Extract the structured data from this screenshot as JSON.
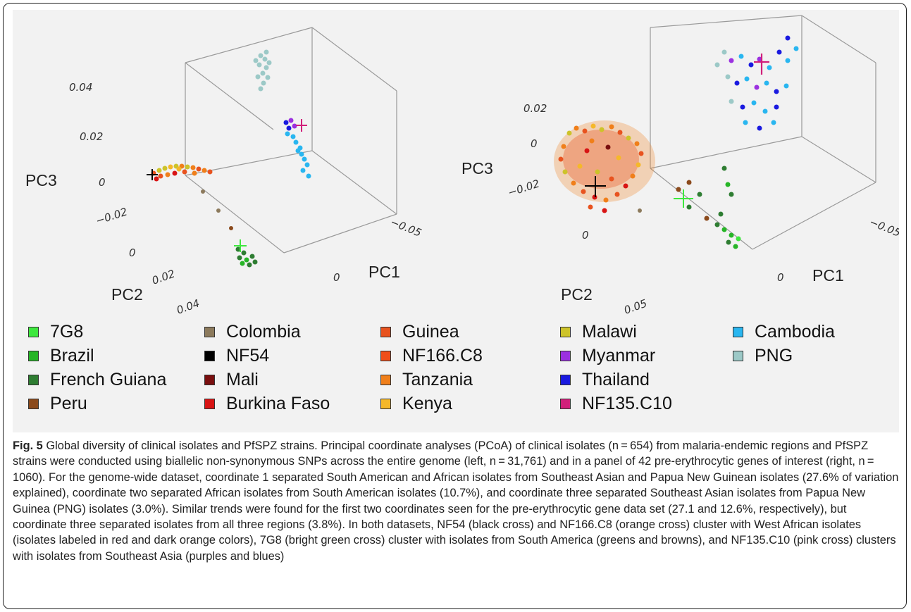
{
  "figure": {
    "left_plot": {
      "axis_titles": {
        "pc1": "PC1",
        "pc2": "PC2",
        "pc3": "PC3"
      },
      "pc3_ticks": [
        "0.04",
        "0.02",
        "0"
      ],
      "pc2_ticks": [
        "−0.02",
        "0",
        "0.02",
        "0.04"
      ],
      "pc1_ticks": [
        "−0.05",
        "0"
      ]
    },
    "right_plot": {
      "axis_titles": {
        "pc1": "PC1",
        "pc2": "PC2",
        "pc3": "PC3"
      },
      "pc3_ticks": [
        "0.02",
        "0",
        "−0.02"
      ],
      "pc2_ticks": [
        "0",
        "0.05"
      ],
      "pc1_ticks": [
        "−0.05",
        "0"
      ]
    },
    "legend": [
      {
        "label": "7G8",
        "color": "#3ee83e"
      },
      {
        "label": "Brazil",
        "color": "#26b526"
      },
      {
        "label": "French Guiana",
        "color": "#2e7d32"
      },
      {
        "label": "Peru",
        "color": "#8b4a1c"
      },
      {
        "label": "Colombia",
        "color": "#8c7a5c"
      },
      {
        "label": "NF54",
        "color": "#000000"
      },
      {
        "label": "Mali",
        "color": "#7a0f0f"
      },
      {
        "label": "Burkina Faso",
        "color": "#d81414"
      },
      {
        "label": "Guinea",
        "color": "#e8531f"
      },
      {
        "label": "NF166.C8",
        "color": "#f04e1a"
      },
      {
        "label": "Tanzania",
        "color": "#f07f1a"
      },
      {
        "label": "Kenya",
        "color": "#f5b82a"
      },
      {
        "label": "Malawi",
        "color": "#cdc32a"
      },
      {
        "label": "Myanmar",
        "color": "#9b30e0"
      },
      {
        "label": "Thailand",
        "color": "#1a1ae0"
      },
      {
        "label": "NF135.C10",
        "color": "#d11f7a"
      },
      {
        "label": "Cambodia",
        "color": "#29b6f0"
      },
      {
        "label": "PNG",
        "color": "#9cc9c7"
      }
    ],
    "caption": {
      "label": "Fig. 5",
      "text": " Global diversity of clinical isolates and PfSPZ strains. Principal coordinate analyses (PCoA) of clinical isolates (n = 654) from malaria-endemic regions and PfSPZ strains were conducted using biallelic non-synonymous SNPs across the entire genome (left, n = 31,761) and in a panel of 42 pre-erythrocytic genes of interest (right, n = 1060). For the genome-wide dataset, coordinate 1 separated South American and African isolates from Southeast Asian and Papua New Guinean isolates (27.6% of variation explained), coordinate two separated African isolates from South American isolates (10.7%), and coordinate three separated Southeast Asian isolates from Papua New Guinea (PNG) isolates (3.0%). Similar trends were found for the first two coordinates seen for the pre-erythrocytic gene data set (27.1 and 12.6%, respectively), but coordinate three separated isolates from all three regions (3.8%). In both datasets, NF54 (black cross) and NF166.C8 (orange cross) cluster with West African isolates (isolates labeled in red and dark orange colors), 7G8 (bright green cross) cluster with isolates from South America (greens and browns), and NF135.C10 (pink cross) clusters with isolates from Southeast Asia (purples and blues)"
    }
  }
}
